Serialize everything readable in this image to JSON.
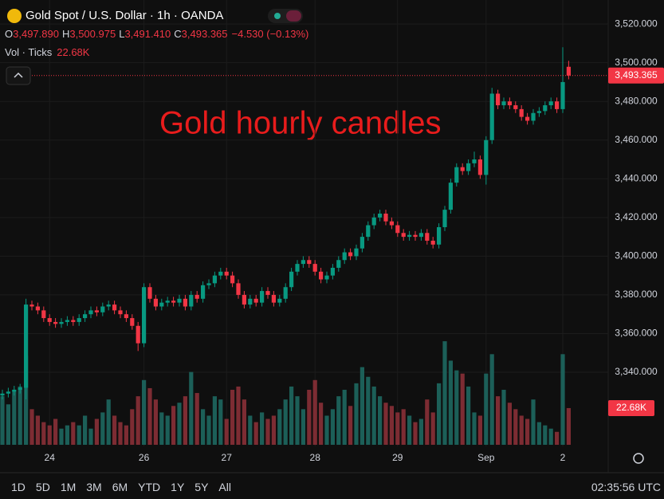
{
  "chart_data": {
    "type": "candlestick",
    "title": "Gold Spot / U.S. Dollar · 1h · OANDA",
    "ohlc_keys": {
      "open": "O",
      "high": "H",
      "low": "L",
      "close": "C"
    },
    "ohlc_labels": {
      "open": "3,497.890",
      "high": "3,500.975",
      "low": "3,491.410",
      "close": "3,493.365"
    },
    "change_label": "−4.530 (−0.13%)",
    "volume_title": "Vol · Ticks",
    "volume_label": "22.68K",
    "annotation": "Gold hourly candles",
    "up_color": "#089981",
    "down_color": "#f23645",
    "volume_up_color": "#1c5f58",
    "volume_down_color": "#7d2c33",
    "grid": true,
    "categories": [
      null,
      null,
      null,
      null,
      null,
      null,
      null,
      null,
      "24",
      null,
      null,
      null,
      null,
      null,
      null,
      null,
      null,
      null,
      null,
      null,
      null,
      null,
      null,
      null,
      "26",
      null,
      null,
      null,
      null,
      null,
      null,
      null,
      null,
      null,
      null,
      null,
      null,
      null,
      "27",
      null,
      null,
      null,
      null,
      null,
      null,
      null,
      null,
      null,
      null,
      null,
      null,
      null,
      null,
      "28",
      null,
      null,
      null,
      null,
      null,
      null,
      null,
      null,
      null,
      null,
      null,
      null,
      null,
      "29",
      null,
      null,
      null,
      null,
      null,
      null,
      null,
      null,
      null,
      null,
      null,
      null,
      null,
      null,
      "Sep",
      null,
      null,
      null,
      null,
      null,
      null,
      null,
      null,
      null,
      null,
      null,
      null,
      "2",
      null
    ],
    "open": [
      3328,
      3329,
      3330,
      3331,
      3332,
      3375,
      3374,
      3372,
      3368,
      3366,
      3365,
      3366,
      3367,
      3366,
      3368,
      3370,
      3372,
      3371,
      3374,
      3375,
      3372,
      3370,
      3368,
      3364,
      3355,
      3384,
      3378,
      3374,
      3376,
      3377,
      3376,
      3378,
      3374,
      3380,
      3378,
      3385,
      3386,
      3390,
      3392,
      3390,
      3386,
      3380,
      3375,
      3378,
      3376,
      3382,
      3380,
      3376,
      3378,
      3384,
      3392,
      3396,
      3398,
      3396,
      3392,
      3388,
      3390,
      3394,
      3398,
      3402,
      3400,
      3404,
      3410,
      3416,
      3420,
      3422,
      3418,
      3416,
      3412,
      3410,
      3411,
      3410,
      3412,
      3408,
      3406,
      3415,
      3424,
      3438,
      3446,
      3444,
      3448,
      3450,
      3442,
      3460,
      3484,
      3478,
      3480,
      3478,
      3476,
      3472,
      3470,
      3474,
      3475,
      3478,
      3480,
      3476,
      3497.89
    ],
    "high": [
      3331,
      3332,
      3333,
      3334,
      3378,
      3377,
      3376,
      3374,
      3370,
      3368,
      3368,
      3369,
      3369,
      3370,
      3372,
      3374,
      3374,
      3376,
      3377,
      3377,
      3374,
      3372,
      3370,
      3366,
      3386,
      3386,
      3380,
      3378,
      3379,
      3379,
      3380,
      3380,
      3382,
      3382,
      3387,
      3388,
      3392,
      3394,
      3394,
      3392,
      3388,
      3382,
      3380,
      3380,
      3384,
      3384,
      3382,
      3380,
      3386,
      3394,
      3398,
      3400,
      3400,
      3398,
      3394,
      3392,
      3396,
      3400,
      3404,
      3404,
      3406,
      3412,
      3418,
      3422,
      3424,
      3424,
      3420,
      3418,
      3414,
      3413,
      3413,
      3414,
      3414,
      3410,
      3417,
      3426,
      3440,
      3448,
      3448,
      3450,
      3454,
      3452,
      3462,
      3487,
      3486,
      3482,
      3482,
      3480,
      3478,
      3474,
      3476,
      3477,
      3480,
      3482,
      3482,
      3508,
      3500.975
    ],
    "low": [
      3326,
      3327,
      3328,
      3329,
      3326,
      3372,
      3370,
      3366,
      3364,
      3363,
      3363,
      3364,
      3364,
      3364,
      3366,
      3368,
      3369,
      3369,
      3372,
      3370,
      3368,
      3366,
      3362,
      3351,
      3353,
      3376,
      3372,
      3372,
      3374,
      3374,
      3374,
      3372,
      3372,
      3376,
      3376,
      3383,
      3384,
      3388,
      3388,
      3384,
      3378,
      3373,
      3373,
      3374,
      3374,
      3378,
      3374,
      3374,
      3376,
      3382,
      3390,
      3394,
      3394,
      3390,
      3386,
      3386,
      3388,
      3392,
      3396,
      3398,
      3398,
      3402,
      3408,
      3414,
      3418,
      3416,
      3414,
      3410,
      3408,
      3408,
      3408,
      3408,
      3406,
      3404,
      3404,
      3413,
      3422,
      3436,
      3442,
      3442,
      3446,
      3440,
      3437,
      3458,
      3476,
      3476,
      3476,
      3474,
      3470,
      3468,
      3468,
      3472,
      3473,
      3476,
      3474,
      3474,
      3491.41
    ],
    "close": [
      3329,
      3330,
      3331,
      3332,
      3375,
      3374,
      3372,
      3368,
      3366,
      3365,
      3366,
      3367,
      3366,
      3368,
      3370,
      3372,
      3371,
      3374,
      3375,
      3372,
      3370,
      3368,
      3364,
      3355,
      3384,
      3378,
      3374,
      3376,
      3377,
      3376,
      3378,
      3374,
      3380,
      3378,
      3385,
      3386,
      3390,
      3392,
      3390,
      3386,
      3380,
      3375,
      3378,
      3376,
      3382,
      3380,
      3376,
      3378,
      3384,
      3392,
      3396,
      3398,
      3396,
      3392,
      3388,
      3390,
      3394,
      3398,
      3402,
      3400,
      3404,
      3410,
      3416,
      3420,
      3422,
      3418,
      3416,
      3412,
      3410,
      3411,
      3410,
      3412,
      3408,
      3406,
      3415,
      3424,
      3438,
      3446,
      3444,
      3448,
      3450,
      3442,
      3460,
      3484,
      3478,
      3480,
      3478,
      3476,
      3472,
      3470,
      3474,
      3475,
      3478,
      3480,
      3476,
      3490,
      3493.365
    ],
    "volume": [
      30,
      25,
      33,
      36,
      55,
      22,
      18,
      14,
      12,
      16,
      10,
      12,
      14,
      12,
      18,
      10,
      16,
      20,
      28,
      18,
      14,
      12,
      22,
      30,
      40,
      35,
      28,
      20,
      18,
      24,
      26,
      30,
      45,
      32,
      22,
      18,
      30,
      28,
      16,
      34,
      36,
      28,
      18,
      14,
      20,
      16,
      18,
      22,
      28,
      36,
      30,
      22,
      34,
      40,
      26,
      18,
      22,
      30,
      34,
      24,
      38,
      48,
      42,
      36,
      30,
      26,
      24,
      20,
      22,
      18,
      14,
      16,
      28,
      20,
      38,
      64,
      52,
      46,
      44,
      36,
      20,
      18,
      44,
      56,
      30,
      34,
      26,
      22,
      18,
      16,
      28,
      14,
      12,
      10,
      8,
      56,
      22.68
    ],
    "ylim": [
      3301.7,
      3532.4
    ],
    "yticks": [
      {
        "value": 3340,
        "label": "3,340.000"
      },
      {
        "value": 3360,
        "label": "3,360.000"
      },
      {
        "value": 3380,
        "label": "3,380.000"
      },
      {
        "value": 3400,
        "label": "3,400.000"
      },
      {
        "value": 3420,
        "label": "3,420.000"
      },
      {
        "value": 3440,
        "label": "3,440.000"
      },
      {
        "value": 3460,
        "label": "3,460.000"
      },
      {
        "value": 3480,
        "label": "3,480.000"
      },
      {
        "value": 3500,
        "label": "3,500.000"
      },
      {
        "value": 3520,
        "label": "3,520.000"
      }
    ]
  },
  "toolbar": {
    "ranges": [
      "1D",
      "5D",
      "1M",
      "3M",
      "6M",
      "YTD",
      "1Y",
      "5Y",
      "All"
    ],
    "clock": "02:35:56 UTC"
  }
}
